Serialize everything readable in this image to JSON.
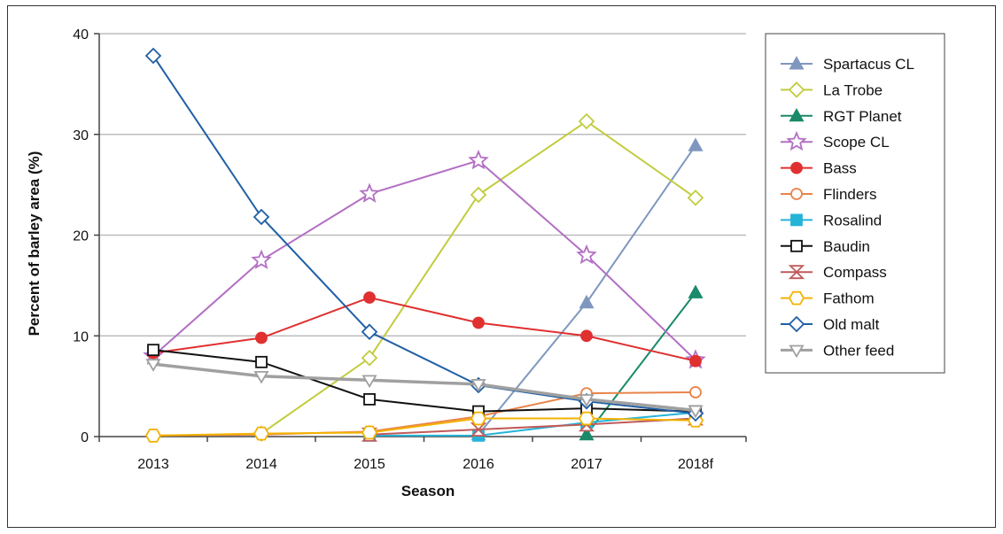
{
  "chart_data": {
    "type": "line",
    "title": "",
    "xlabel": "Season",
    "ylabel": "Percent of barley area (%)",
    "categories": [
      "2013",
      "2014",
      "2015",
      "2016",
      "2017",
      "2018f"
    ],
    "yticks": [
      "0",
      "10",
      "20",
      "30",
      "40"
    ],
    "ylim": [
      0,
      40
    ],
    "grid": "horizontal",
    "legend_position": "right",
    "series": [
      {
        "name": "Spartacus CL",
        "color": "#7f97bf",
        "marker": "triangle-filled",
        "values": [
          null,
          null,
          null,
          0.2,
          13.3,
          28.9
        ]
      },
      {
        "name": "La Trobe",
        "color": "#c2cc3d",
        "marker": "diamond-open",
        "values": [
          null,
          0.3,
          7.8,
          24.0,
          31.3,
          23.7
        ]
      },
      {
        "name": "RGT Planet",
        "color": "#1a8a6a",
        "marker": "triangle-filled",
        "values": [
          null,
          null,
          null,
          null,
          0.2,
          14.3
        ]
      },
      {
        "name": "Scope CL",
        "color": "#b36fc4",
        "marker": "star-open",
        "values": [
          8.0,
          17.5,
          24.1,
          27.4,
          18.0,
          7.6
        ]
      },
      {
        "name": "Bass",
        "color": "#e03030",
        "marker": "circle-filled",
        "values": [
          8.3,
          9.8,
          13.8,
          11.3,
          10.0,
          7.5
        ]
      },
      {
        "name": "Flinders",
        "color": "#e8844a",
        "marker": "circle-open",
        "values": [
          0.1,
          0.2,
          0.5,
          2.0,
          4.3,
          4.4
        ]
      },
      {
        "name": "Rosalind",
        "color": "#25b3d8",
        "marker": "square-filled",
        "values": [
          null,
          null,
          0.1,
          0.1,
          1.4,
          2.4
        ]
      },
      {
        "name": "Baudin",
        "color": "#111111",
        "marker": "square-open",
        "values": [
          8.6,
          7.4,
          3.7,
          2.5,
          2.8,
          2.5
        ]
      },
      {
        "name": "Compass",
        "color": "#c05a5a",
        "marker": "hourglass-open",
        "values": [
          null,
          null,
          0.2,
          0.7,
          1.2,
          1.8
        ]
      },
      {
        "name": "Fathom",
        "color": "#f2b200",
        "marker": "hexagon-open",
        "values": [
          0.1,
          0.3,
          0.4,
          1.8,
          1.8,
          1.6
        ]
      },
      {
        "name": "Old malt",
        "color": "#1f5fa5",
        "marker": "diamond-open",
        "values": [
          37.8,
          21.8,
          10.4,
          5.1,
          3.5,
          2.3
        ]
      },
      {
        "name": "Other feed",
        "color": "#a0a0a0",
        "marker": "triangle-down-open",
        "values": [
          7.2,
          6.0,
          5.6,
          5.2,
          3.7,
          2.6
        ]
      }
    ]
  }
}
